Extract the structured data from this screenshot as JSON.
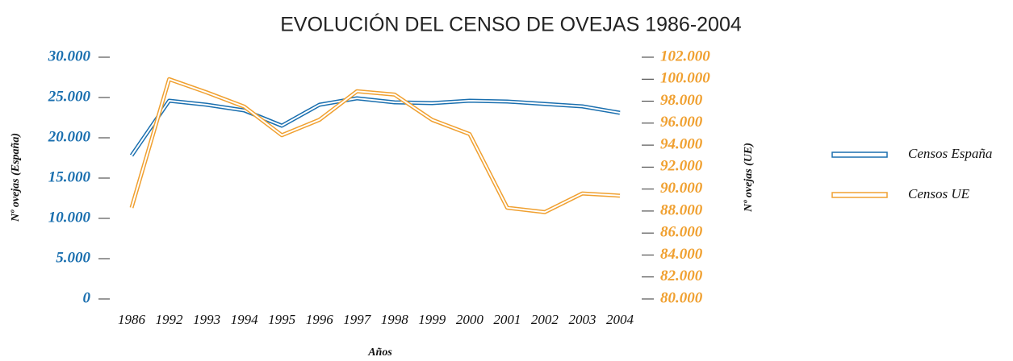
{
  "chart_data": {
    "type": "line",
    "title": "EVOLUCIÓN DEL CENSO DE OVEJAS 1986-2004",
    "x_label": "Años",
    "y_label": "Nº ovejas (España)",
    "y2_label": "Nº ovejas (UE)",
    "categories": [
      "1986",
      "1992",
      "1993",
      "1994",
      "1995",
      "1996",
      "1997",
      "1998",
      "1999",
      "2000",
      "2001",
      "2002",
      "2003",
      "2004"
    ],
    "series": [
      {
        "name": "Censos España",
        "color": "#1a6faf",
        "axis": "y",
        "values": [
          17800,
          24600,
          24100,
          23400,
          21500,
          24100,
          24900,
          24400,
          24300,
          24600,
          24500,
          24200,
          23900,
          23100
        ]
      },
      {
        "name": "Censos UE",
        "color": "#f0a030",
        "axis": "y2",
        "values": [
          88300,
          100000,
          98800,
          97500,
          94900,
          96300,
          98900,
          98600,
          96300,
          95000,
          88300,
          87900,
          89600,
          89400
        ]
      }
    ],
    "ylim": [
      0,
      30000
    ],
    "yticks": [
      {
        "value": 0,
        "label": "0"
      },
      {
        "value": 5000,
        "label": "5.000"
      },
      {
        "value": 10000,
        "label": "10.000"
      },
      {
        "value": 15000,
        "label": "15.000"
      },
      {
        "value": 20000,
        "label": "20.000"
      },
      {
        "value": 25000,
        "label": "25.000"
      },
      {
        "value": 30000,
        "label": "30.000"
      }
    ],
    "y2lim": [
      80000,
      102000
    ],
    "y2ticks": [
      {
        "value": 80000,
        "label": "80.000"
      },
      {
        "value": 82000,
        "label": "82.000"
      },
      {
        "value": 84000,
        "label": "84.000"
      },
      {
        "value": 86000,
        "label": "86.000"
      },
      {
        "value": 88000,
        "label": "88.000"
      },
      {
        "value": 90000,
        "label": "90.000"
      },
      {
        "value": 92000,
        "label": "92.000"
      },
      {
        "value": 94000,
        "label": "94.000"
      },
      {
        "value": 96000,
        "label": "96.000"
      },
      {
        "value": 98000,
        "label": "98.000"
      },
      {
        "value": 100000,
        "label": "100.000"
      },
      {
        "value": 102000,
        "label": "102.000"
      }
    ]
  }
}
